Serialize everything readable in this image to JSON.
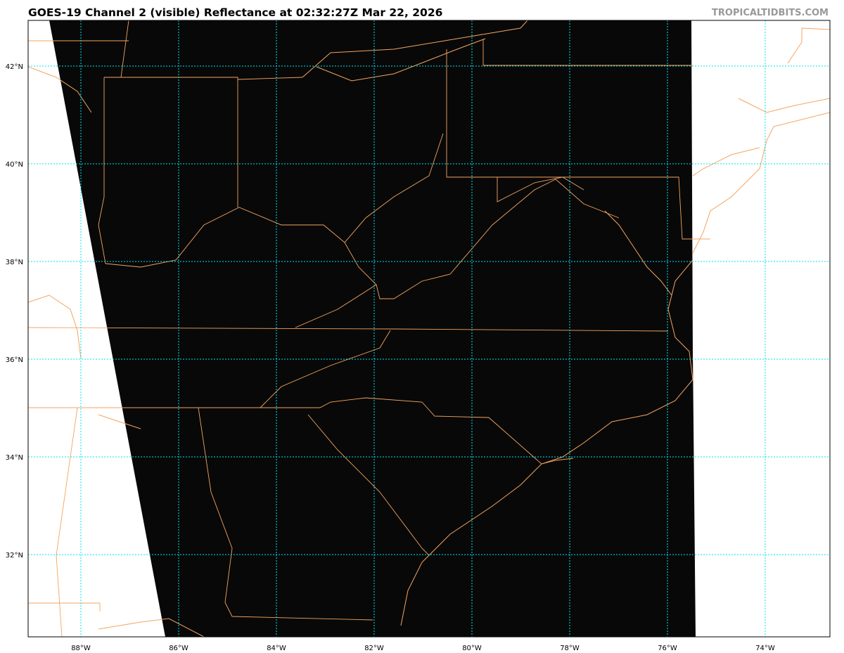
{
  "header": {
    "title": "GOES-19 Channel 2 (visible) Reflectance at 02:32:27Z Mar 22, 2026",
    "brand": "TROPICALTIDBITS.COM"
  },
  "map": {
    "projection_extent": {
      "lon": [
        -89.1,
        -72.7
      ],
      "lat": [
        30.3,
        42.9
      ]
    },
    "lon_ticks": [
      "88°W",
      "86°W",
      "84°W",
      "82°W",
      "80°W",
      "78°W",
      "76°W",
      "74°W"
    ],
    "lat_ticks": [
      "42°N",
      "40°N",
      "38°N",
      "36°N",
      "34°N",
      "32°N"
    ],
    "colors": {
      "boundaries": "#f4a460",
      "gridlines": "#00e5ee",
      "imagery": "#080808",
      "no_data": "#ffffff"
    }
  }
}
